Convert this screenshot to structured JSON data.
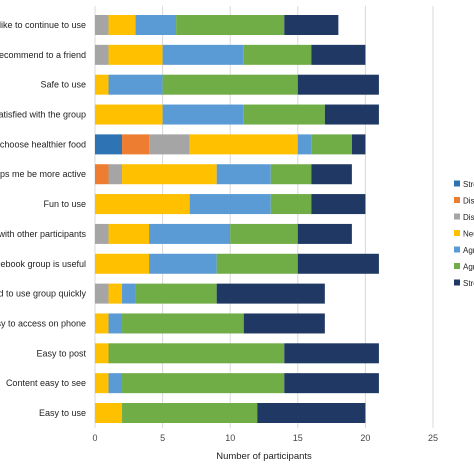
{
  "chart_data": {
    "type": "bar",
    "orientation": "horizontal",
    "stacked": true,
    "xlabel": "Number of participants",
    "xlim": [
      0,
      25
    ],
    "xticks": [
      0,
      5,
      10,
      15,
      20,
      25
    ],
    "grid": "vertical",
    "legend_position": "right",
    "categories": [
      "I would like to continue to use",
      "I would recommend to a friend",
      "Safe to use",
      "Satisfied with the group",
      "Helped me choose healthier food",
      "Helps me be more active",
      "Fun to use",
      "Connected with other participants",
      "Facebook group is useful",
      "Learned to use group quickly",
      "Easy to access on phone",
      "Easy to post",
      "Content easy to see",
      "Easy to use"
    ],
    "category_labels_visible": [
      "I like to continue to use",
      "recommend to a friend",
      "Safe to use",
      "Satisfied with the group",
      "e choose healthier food",
      "elps me be more active",
      "Fun to use",
      "with other participants",
      "acebook group is useful",
      "ed to use group quickly",
      "asy to access on phone",
      "Easy to post",
      "Content easy to see",
      "Easy to use"
    ],
    "series": [
      {
        "name": "Strongly disagree",
        "label_visible": "Stro",
        "color": "#2e74b5",
        "values": [
          0,
          0,
          0,
          0,
          2,
          0,
          0,
          0,
          0,
          0,
          0,
          0,
          0,
          0
        ]
      },
      {
        "name": "Disagree",
        "label_visible": "Disa",
        "color": "#ed7d31",
        "values": [
          0,
          0,
          0,
          0,
          2,
          1,
          0,
          0,
          0,
          0,
          0,
          0,
          0,
          0
        ]
      },
      {
        "name": "Disagree somewhat",
        "label_visible": "Disa",
        "color": "#a5a5a5",
        "values": [
          1,
          1,
          0,
          0,
          3,
          1,
          0,
          1,
          0,
          1,
          0,
          0,
          0,
          0
        ]
      },
      {
        "name": "Neutral",
        "label_visible": "Neu",
        "color": "#ffc000",
        "values": [
          2,
          4,
          1,
          5,
          8,
          7,
          7,
          3,
          4,
          1,
          1,
          1,
          1,
          2
        ]
      },
      {
        "name": "Agree somewhat",
        "label_visible": "Agre",
        "color": "#5b9bd5",
        "values": [
          3,
          6,
          4,
          6,
          1,
          4,
          6,
          6,
          5,
          1,
          1,
          0,
          1,
          0
        ]
      },
      {
        "name": "Agree",
        "label_visible": "Agre",
        "color": "#70ad47",
        "values": [
          8,
          5,
          10,
          6,
          3,
          3,
          3,
          5,
          6,
          6,
          9,
          13,
          12,
          10
        ]
      },
      {
        "name": "Strongly agree",
        "label_visible": "Stro",
        "color": "#203864",
        "values": [
          4,
          4,
          6,
          4,
          1,
          3,
          4,
          4,
          6,
          8,
          6,
          7,
          7,
          8
        ]
      }
    ]
  }
}
